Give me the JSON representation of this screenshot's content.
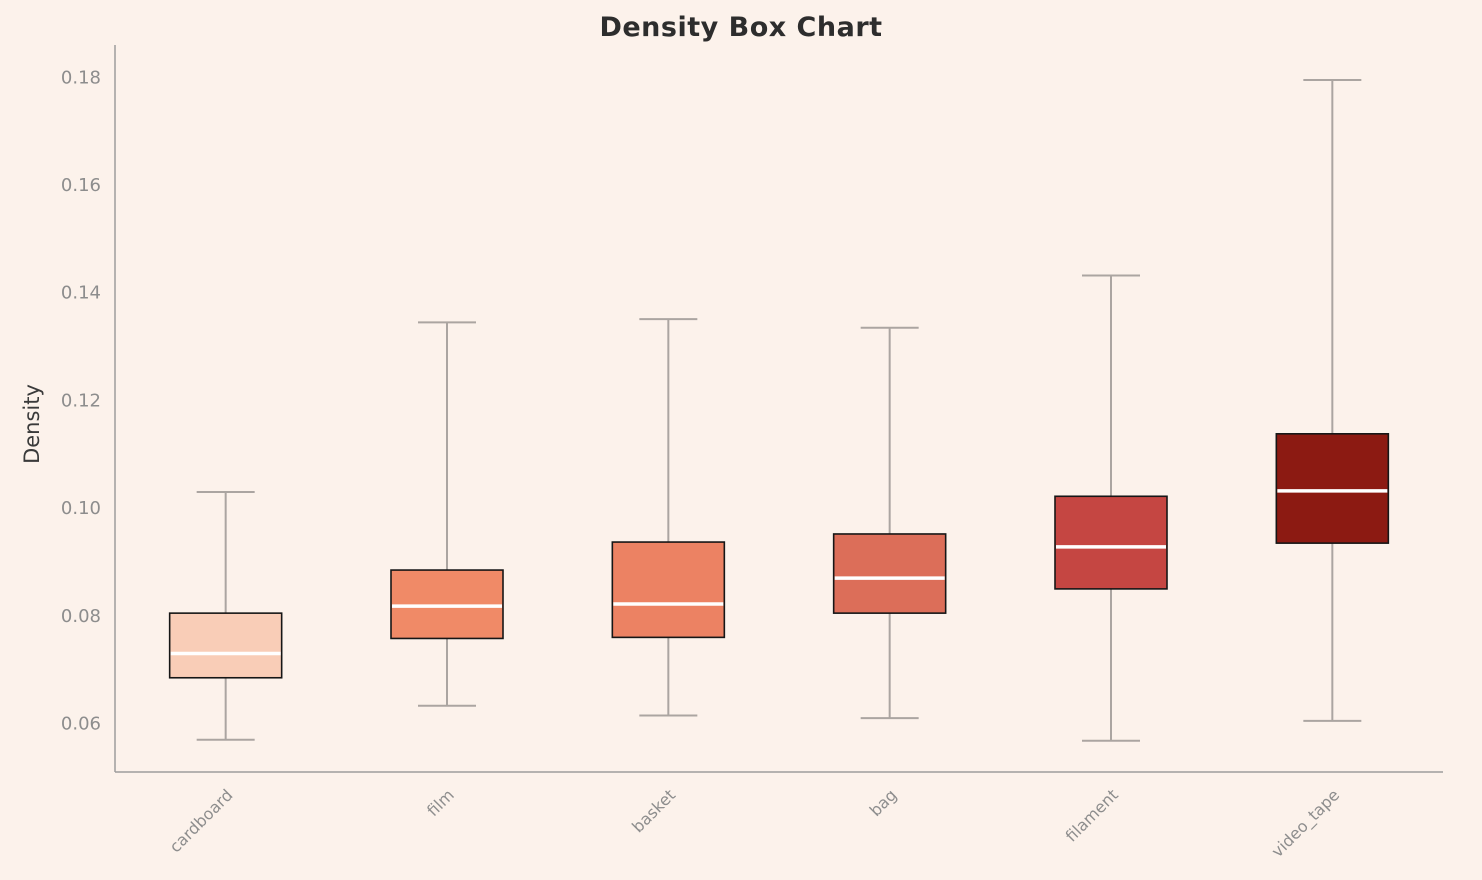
{
  "page": {
    "background_color": "#FCF2EB",
    "title": "Density Box Chart"
  },
  "chart_data": {
    "type": "box",
    "title": "Density Box Chart",
    "xlabel": "",
    "ylabel": "Density",
    "categories": [
      "cardboard",
      "film",
      "basket",
      "bag",
      "filament",
      "video_tape"
    ],
    "series": [
      {
        "name": "cardboard",
        "whisker_low": 0.057,
        "q1": 0.0685,
        "median": 0.073,
        "q3": 0.0805,
        "whisker_high": 0.103
      },
      {
        "name": "film",
        "whisker_low": 0.0633,
        "q1": 0.0758,
        "median": 0.0818,
        "q3": 0.0885,
        "whisker_high": 0.1345
      },
      {
        "name": "basket",
        "whisker_low": 0.0615,
        "q1": 0.076,
        "median": 0.0822,
        "q3": 0.0937,
        "whisker_high": 0.1351
      },
      {
        "name": "bag",
        "whisker_low": 0.061,
        "q1": 0.0805,
        "median": 0.087,
        "q3": 0.0952,
        "whisker_high": 0.1335
      },
      {
        "name": "filament",
        "whisker_low": 0.0568,
        "q1": 0.085,
        "median": 0.0928,
        "q3": 0.1022,
        "whisker_high": 0.1432
      },
      {
        "name": "video_tape",
        "whisker_low": 0.0605,
        "q1": 0.0935,
        "median": 0.1032,
        "q3": 0.1138,
        "whisker_high": 0.1795
      }
    ],
    "colors": [
      "#F9CDB7",
      "#F08A67",
      "#EC8263",
      "#DC6E59",
      "#C54642",
      "#8C1A12"
    ],
    "box_border_color": "#161616",
    "median_color": "#FFFFFF",
    "whisker_color": "#ABA5A1",
    "axis_color": "#9D9D9D",
    "yticks": [
      0.06,
      0.08,
      0.1,
      0.12,
      0.14,
      0.16,
      0.18
    ],
    "ylim": [
      0.051,
      0.186
    ],
    "grid": false,
    "legend": "none"
  }
}
